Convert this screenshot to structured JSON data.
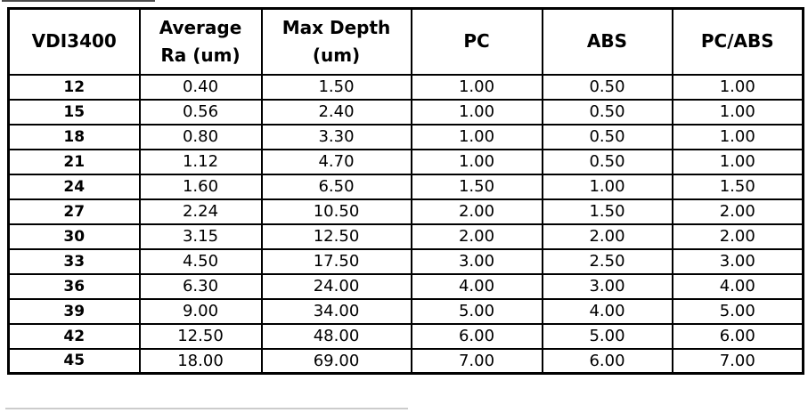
{
  "colors": {
    "background": "#ffffff",
    "border": "#000000",
    "text": "#000000",
    "artifact_faint": "#cccccc"
  },
  "table": {
    "header": {
      "col1": "VDI3400",
      "col2_line1": "Average",
      "col2_line2": "Ra (um)",
      "col3_line1": "Max Depth",
      "col3_line2": "(um)",
      "col4": "PC",
      "col5": "ABS",
      "col6": "PC/ABS"
    },
    "rows": [
      [
        "12",
        "0.40",
        "1.50",
        "1.00",
        "0.50",
        "1.00"
      ],
      [
        "15",
        "0.56",
        "2.40",
        "1.00",
        "0.50",
        "1.00"
      ],
      [
        "18",
        "0.80",
        "3.30",
        "1.00",
        "0.50",
        "1.00"
      ],
      [
        "21",
        "1.12",
        "4.70",
        "1.00",
        "0.50",
        "1.00"
      ],
      [
        "24",
        "1.60",
        "6.50",
        "1.50",
        "1.00",
        "1.50"
      ],
      [
        "27",
        "2.24",
        "10.50",
        "2.00",
        "1.50",
        "2.00"
      ],
      [
        "30",
        "3.15",
        "12.50",
        "2.00",
        "2.00",
        "2.00"
      ],
      [
        "33",
        "4.50",
        "17.50",
        "3.00",
        "2.50",
        "3.00"
      ],
      [
        "36",
        "6.30",
        "24.00",
        "4.00",
        "3.00",
        "4.00"
      ],
      [
        "39",
        "9.00",
        "34.00",
        "5.00",
        "4.00",
        "5.00"
      ],
      [
        "42",
        "12.50",
        "48.00",
        "6.00",
        "5.00",
        "6.00"
      ],
      [
        "45",
        "18.00",
        "69.00",
        "7.00",
        "6.00",
        "7.00"
      ]
    ]
  },
  "chart_data": {
    "type": "table",
    "columns": [
      "VDI3400",
      "Average Ra (um)",
      "Max Depth (um)",
      "PC",
      "ABS",
      "PC/ABS"
    ],
    "rows": [
      [
        12,
        0.4,
        1.5,
        1.0,
        0.5,
        1.0
      ],
      [
        15,
        0.56,
        2.4,
        1.0,
        0.5,
        1.0
      ],
      [
        18,
        0.8,
        3.3,
        1.0,
        0.5,
        1.0
      ],
      [
        21,
        1.12,
        4.7,
        1.0,
        0.5,
        1.0
      ],
      [
        24,
        1.6,
        6.5,
        1.5,
        1.0,
        1.5
      ],
      [
        27,
        2.24,
        10.5,
        2.0,
        1.5,
        2.0
      ],
      [
        30,
        3.15,
        12.5,
        2.0,
        2.0,
        2.0
      ],
      [
        33,
        4.5,
        17.5,
        3.0,
        2.5,
        3.0
      ],
      [
        36,
        6.3,
        24.0,
        4.0,
        3.0,
        4.0
      ],
      [
        39,
        9.0,
        34.0,
        5.0,
        4.0,
        5.0
      ],
      [
        42,
        12.5,
        48.0,
        6.0,
        5.0,
        6.0
      ],
      [
        45,
        18.0,
        69.0,
        7.0,
        6.0,
        7.0
      ]
    ]
  }
}
